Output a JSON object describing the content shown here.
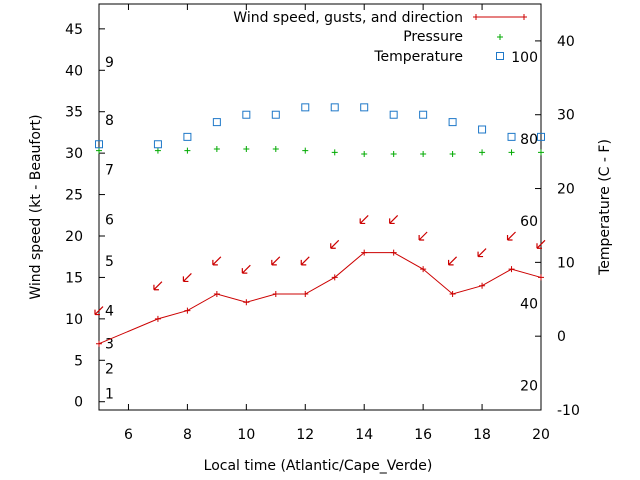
{
  "chart_data": {
    "type": "line",
    "xlabel": "Local time (Atlantic/Cape_Verde)",
    "ylabel": "Wind speed (kt - Beaufort)",
    "y2label": "Temperature (C - F)",
    "xlim": [
      5,
      20
    ],
    "ylim": [
      -1,
      48
    ],
    "y2lim": [
      -10,
      45
    ],
    "x_ticks": [
      6,
      8,
      10,
      12,
      14,
      16,
      18,
      20
    ],
    "y_ticks": [
      0,
      5,
      10,
      15,
      20,
      25,
      30,
      35,
      40,
      45
    ],
    "y2_ticks": [
      -10,
      0,
      10,
      20,
      30,
      40
    ],
    "beaufort_ticks": [
      {
        "label": "1",
        "kt": 1.0
      },
      {
        "label": "2",
        "kt": 4.0
      },
      {
        "label": "3",
        "kt": 7.0
      },
      {
        "label": "4",
        "kt": 11.0
      },
      {
        "label": "5",
        "kt": 17.0
      },
      {
        "label": "6",
        "kt": 22.0
      },
      {
        "label": "7",
        "kt": 28.0
      },
      {
        "label": "8",
        "kt": 34.0
      },
      {
        "label": "9",
        "kt": 41.0
      }
    ],
    "fahrenheit_ticks": [
      {
        "label": "20",
        "celsius": -6.7
      },
      {
        "label": "40",
        "celsius": 4.4
      },
      {
        "label": "60",
        "celsius": 15.6
      },
      {
        "label": "80",
        "celsius": 26.7
      },
      {
        "label": "100",
        "celsius": 37.8
      }
    ],
    "series": [
      {
        "name": "Wind speed, gusts, and direction",
        "color": "#cc0000",
        "x": [
          5,
          7,
          8,
          9,
          10,
          11,
          12,
          13,
          14,
          15,
          16,
          17,
          18,
          19,
          20
        ],
        "values": [
          7,
          10,
          11,
          13,
          12,
          13,
          13,
          15,
          18,
          18,
          16,
          13,
          14,
          16,
          15
        ],
        "direction_arrow_y": [
          11,
          14,
          15,
          17,
          16,
          17,
          17,
          19,
          22,
          22,
          20,
          17,
          18,
          20,
          19
        ]
      },
      {
        "name": "Pressure",
        "color": "#00aa00",
        "x": [
          5,
          7,
          8,
          9,
          10,
          11,
          12,
          13,
          14,
          15,
          16,
          17,
          18,
          19,
          20
        ],
        "values": [
          30.3,
          30.3,
          30.3,
          30.5,
          30.5,
          30.5,
          30.3,
          30.1,
          29.9,
          29.9,
          29.9,
          29.9,
          30.1,
          30.1,
          30.1
        ]
      },
      {
        "name": "Temperature",
        "color": "#1e78c8",
        "axis": "y2",
        "x": [
          5,
          7,
          8,
          9,
          10,
          11,
          12,
          13,
          14,
          15,
          16,
          17,
          18,
          19,
          20
        ],
        "values": [
          26,
          26,
          27,
          29,
          30,
          30,
          31,
          31,
          31,
          30,
          30,
          29,
          28,
          27,
          27
        ]
      }
    ],
    "legend_position": "top-right",
    "grid": false
  }
}
